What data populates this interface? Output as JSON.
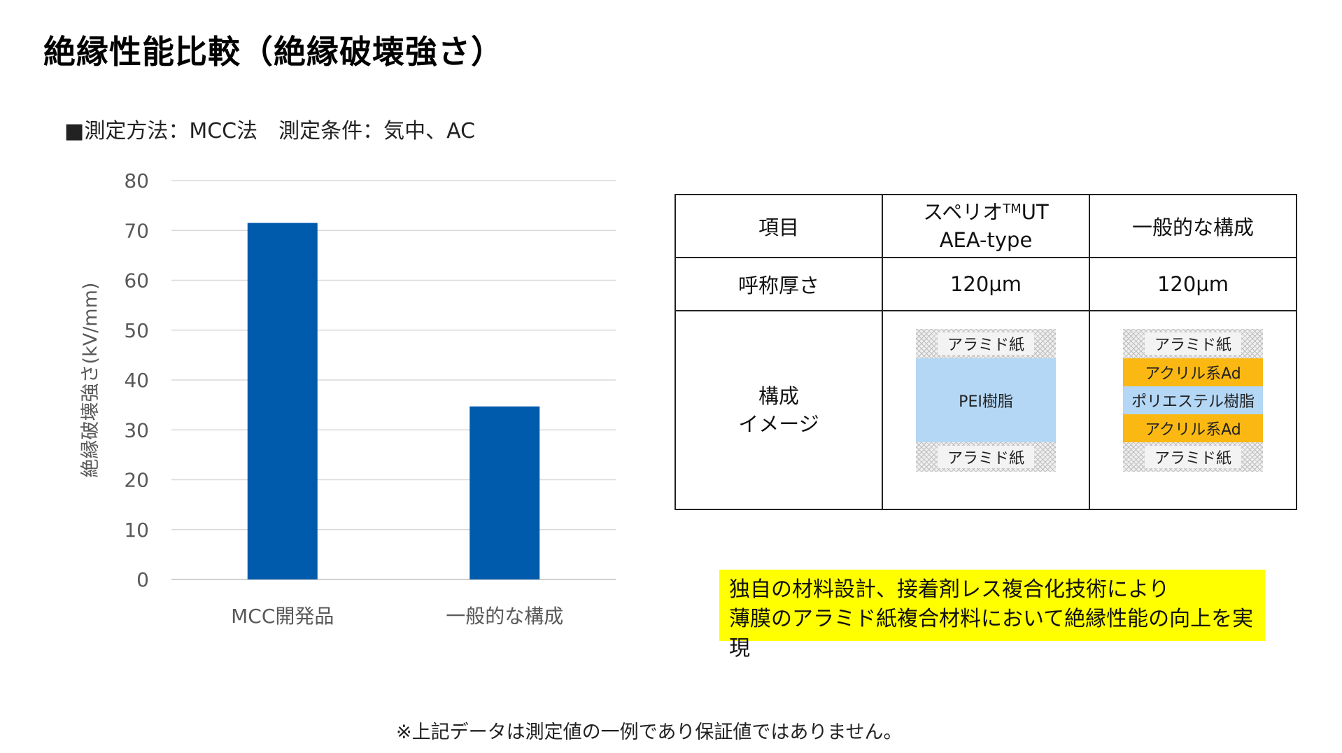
{
  "title": "絶縁性能比較（絶縁破壊強さ）",
  "condition": "■測定方法：MCC法　測定条件：気中、AC",
  "chart_data": {
    "type": "bar",
    "categories": [
      "MCC開発品",
      "一般的な構成"
    ],
    "series": [
      {
        "values": [
          71.5,
          34.7
        ]
      }
    ],
    "ylabel": "絶縁破壊強さ(kV/mm)",
    "ylim": [
      0,
      80
    ],
    "yticks": [
      0,
      10,
      20,
      30,
      40,
      50,
      60,
      70,
      80
    ],
    "grid": true,
    "bar_color": "#005bac"
  },
  "table": {
    "header": {
      "item": "項目",
      "col1_line1_main": "スペリオ",
      "col1_line1_sup": "TM",
      "col1_line1_tail": "UT",
      "col1_line2": "AEA-type",
      "col2": "一般的な構成"
    },
    "thickness_row": {
      "label": "呼称厚さ",
      "col1": "120µm",
      "col2": "120µm"
    },
    "structure_row": {
      "label_line1": "構成",
      "label_line2": "イメージ",
      "col1_layers": [
        "アラミド紙",
        "PEI樹脂",
        "アラミド紙"
      ],
      "col2_layers": [
        "アラミド紙",
        "アクリル系Ad",
        "ポリエステル樹脂",
        "アクリル系Ad",
        "アラミド紙"
      ]
    }
  },
  "highlight": {
    "line1": "独自の材料設計、接着剤レス複合化技術により",
    "line2": "薄膜のアラミド紙複合材料において絶縁性能の向上を実現"
  },
  "footnote": "※上記データは測定値の一例であり保証値ではありません。"
}
